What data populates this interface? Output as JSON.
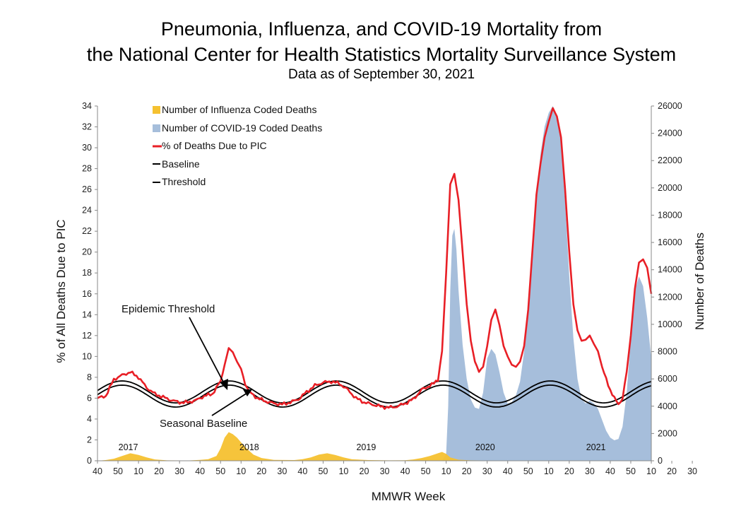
{
  "chart_data": {
    "type": "line",
    "title_line1": "Pneumonia, Influenza, and COVID-19 Mortality from",
    "title_line2": "the National Center for Health Statistics Mortality Surveillance System",
    "subtitle": "Data as of September 30, 2021",
    "xlabel": "MMWR Week",
    "ylabel_left": "% of All Deaths Due to PIC",
    "ylabel_right": "Number of Deaths",
    "ylim_left": [
      0,
      34
    ],
    "ylim_right": [
      0,
      26000
    ],
    "left_ticks": [
      "0",
      "2",
      "4",
      "6",
      "8",
      "10",
      "12",
      "14",
      "16",
      "18",
      "20",
      "22",
      "24",
      "26",
      "28",
      "30",
      "32",
      "34"
    ],
    "right_ticks": [
      "0",
      "2000",
      "4000",
      "6000",
      "8000",
      "10000",
      "12000",
      "14000",
      "16000",
      "18000",
      "20000",
      "22000",
      "24000",
      "26000"
    ],
    "x_tick_labels": [
      "40",
      "50",
      "10",
      "20",
      "30",
      "40",
      "50",
      "10",
      "20",
      "30",
      "40",
      "50",
      "10",
      "20",
      "30",
      "40",
      "50",
      "10",
      "20",
      "30",
      "40",
      "50",
      "10",
      "20",
      "30",
      "40",
      "50",
      "10",
      "20",
      "30"
    ],
    "year_labels": [
      {
        "label": "2017",
        "week_index": 15
      },
      {
        "label": "2018",
        "week_index": 74
      },
      {
        "label": "2019",
        "week_index": 131
      },
      {
        "label": "2020",
        "week_index": 189
      },
      {
        "label": "2021",
        "week_index": 243
      }
    ],
    "legend": [
      {
        "label": "Number of Influenza Coded Deaths",
        "color": "#f5c130",
        "kind": "area"
      },
      {
        "label": "Number of COVID-19 Coded Deaths",
        "color": "#a6bedb",
        "kind": "area"
      },
      {
        "label": "% of Deaths Due to PIC",
        "color": "#e81f26",
        "kind": "line"
      },
      {
        "label": "Baseline",
        "color": "#000000",
        "kind": "line"
      },
      {
        "label": "Threshold",
        "color": "#000000",
        "kind": "line"
      }
    ],
    "annotations": {
      "epidemic_threshold": "Epidemic Threshold",
      "seasonal_baseline": "Seasonal Baseline"
    },
    "series_pic_percent": {
      "name": "% of Deaths Due to PIC",
      "points": [
        [
          0,
          6.0
        ],
        [
          4,
          6.2
        ],
        [
          8,
          7.8
        ],
        [
          12,
          8.2
        ],
        [
          16,
          8.5
        ],
        [
          20,
          8.0
        ],
        [
          24,
          7.0
        ],
        [
          28,
          6.4
        ],
        [
          32,
          6.1
        ],
        [
          36,
          5.8
        ],
        [
          40,
          5.6
        ],
        [
          44,
          5.6
        ],
        [
          48,
          5.8
        ],
        [
          52,
          6.2
        ],
        [
          56,
          6.4
        ],
        [
          60,
          7.6
        ],
        [
          62,
          9.2
        ],
        [
          64,
          10.8
        ],
        [
          66,
          10.4
        ],
        [
          68,
          9.5
        ],
        [
          70,
          8.8
        ],
        [
          72,
          7.4
        ],
        [
          74,
          6.6
        ],
        [
          78,
          6.0
        ],
        [
          82,
          5.7
        ],
        [
          86,
          5.5
        ],
        [
          90,
          5.4
        ],
        [
          94,
          5.6
        ],
        [
          98,
          5.9
        ],
        [
          102,
          6.6
        ],
        [
          106,
          7.2
        ],
        [
          110,
          7.5
        ],
        [
          114,
          7.6
        ],
        [
          118,
          7.4
        ],
        [
          122,
          6.8
        ],
        [
          126,
          6.0
        ],
        [
          130,
          5.6
        ],
        [
          134,
          5.4
        ],
        [
          138,
          5.2
        ],
        [
          142,
          5.1
        ],
        [
          146,
          5.2
        ],
        [
          150,
          5.5
        ],
        [
          154,
          5.9
        ],
        [
          158,
          6.8
        ],
        [
          162,
          7.2
        ],
        [
          164,
          7.4
        ],
        [
          166,
          7.8
        ],
        [
          168,
          10.5
        ],
        [
          170,
          18.0
        ],
        [
          172,
          26.5
        ],
        [
          174,
          27.5
        ],
        [
          176,
          25.0
        ],
        [
          178,
          20.0
        ],
        [
          180,
          15.0
        ],
        [
          182,
          11.5
        ],
        [
          184,
          9.5
        ],
        [
          186,
          8.6
        ],
        [
          188,
          9.0
        ],
        [
          190,
          11.0
        ],
        [
          192,
          13.5
        ],
        [
          194,
          14.5
        ],
        [
          196,
          13.0
        ],
        [
          198,
          11.0
        ],
        [
          200,
          10.0
        ],
        [
          202,
          9.2
        ],
        [
          204,
          9.0
        ],
        [
          206,
          9.5
        ],
        [
          208,
          11.0
        ],
        [
          210,
          14.5
        ],
        [
          212,
          20.0
        ],
        [
          214,
          25.5
        ],
        [
          216,
          28.5
        ],
        [
          218,
          31.0
        ],
        [
          220,
          32.5
        ],
        [
          222,
          33.8
        ],
        [
          224,
          33.0
        ],
        [
          226,
          31.0
        ],
        [
          228,
          26.0
        ],
        [
          230,
          20.0
        ],
        [
          232,
          15.0
        ],
        [
          234,
          12.5
        ],
        [
          236,
          11.5
        ],
        [
          238,
          11.6
        ],
        [
          240,
          12.0
        ],
        [
          242,
          11.2
        ],
        [
          244,
          10.5
        ],
        [
          246,
          9.0
        ],
        [
          248,
          7.8
        ],
        [
          250,
          6.8
        ],
        [
          252,
          6.0
        ],
        [
          254,
          5.4
        ],
        [
          256,
          6.0
        ],
        [
          258,
          8.5
        ],
        [
          260,
          12.0
        ],
        [
          262,
          16.5
        ],
        [
          264,
          19.0
        ],
        [
          266,
          19.3
        ],
        [
          268,
          18.5
        ],
        [
          270,
          16.0
        ]
      ]
    },
    "series_influenza_deaths": {
      "name": "Number of Influenza Coded Deaths",
      "points": [
        [
          0,
          0
        ],
        [
          4,
          50
        ],
        [
          8,
          150
        ],
        [
          12,
          350
        ],
        [
          16,
          550
        ],
        [
          20,
          430
        ],
        [
          24,
          250
        ],
        [
          28,
          100
        ],
        [
          34,
          30
        ],
        [
          44,
          20
        ],
        [
          50,
          60
        ],
        [
          54,
          120
        ],
        [
          58,
          350
        ],
        [
          60,
          900
        ],
        [
          62,
          1700
        ],
        [
          64,
          2100
        ],
        [
          66,
          1950
        ],
        [
          68,
          1700
        ],
        [
          72,
          1000
        ],
        [
          76,
          450
        ],
        [
          80,
          200
        ],
        [
          86,
          60
        ],
        [
          96,
          50
        ],
        [
          100,
          120
        ],
        [
          104,
          250
        ],
        [
          108,
          450
        ],
        [
          112,
          550
        ],
        [
          116,
          420
        ],
        [
          120,
          250
        ],
        [
          124,
          110
        ],
        [
          132,
          50
        ],
        [
          142,
          30
        ],
        [
          150,
          40
        ],
        [
          154,
          100
        ],
        [
          158,
          200
        ],
        [
          162,
          350
        ],
        [
          166,
          550
        ],
        [
          168,
          650
        ],
        [
          170,
          500
        ],
        [
          172,
          250
        ],
        [
          176,
          80
        ],
        [
          182,
          30
        ],
        [
          200,
          15
        ],
        [
          270,
          15
        ]
      ]
    },
    "series_covid_deaths": {
      "name": "Number of COVID-19 Coded Deaths",
      "points": [
        [
          168,
          0
        ],
        [
          170,
          500
        ],
        [
          171,
          4000
        ],
        [
          172,
          12500
        ],
        [
          173,
          16500
        ],
        [
          174,
          17000
        ],
        [
          175,
          15500
        ],
        [
          176,
          12500
        ],
        [
          178,
          8500
        ],
        [
          180,
          6000
        ],
        [
          182,
          4500
        ],
        [
          184,
          3900
        ],
        [
          186,
          3800
        ],
        [
          188,
          5000
        ],
        [
          190,
          7500
        ],
        [
          192,
          8200
        ],
        [
          194,
          7800
        ],
        [
          196,
          6500
        ],
        [
          198,
          5000
        ],
        [
          200,
          4200
        ],
        [
          202,
          4300
        ],
        [
          204,
          4800
        ],
        [
          206,
          5800
        ],
        [
          208,
          8000
        ],
        [
          210,
          11000
        ],
        [
          212,
          15000
        ],
        [
          214,
          19000
        ],
        [
          216,
          22500
        ],
        [
          218,
          24500
        ],
        [
          220,
          25500
        ],
        [
          222,
          26000
        ],
        [
          224,
          25300
        ],
        [
          226,
          23500
        ],
        [
          228,
          19000
        ],
        [
          230,
          13500
        ],
        [
          232,
          9000
        ],
        [
          234,
          6000
        ],
        [
          236,
          4500
        ],
        [
          238,
          4200
        ],
        [
          240,
          4400
        ],
        [
          242,
          4200
        ],
        [
          244,
          3800
        ],
        [
          246,
          3000
        ],
        [
          248,
          2200
        ],
        [
          250,
          1700
        ],
        [
          252,
          1500
        ],
        [
          254,
          1600
        ],
        [
          256,
          2500
        ],
        [
          258,
          5000
        ],
        [
          260,
          9000
        ],
        [
          262,
          12500
        ],
        [
          264,
          13500
        ],
        [
          266,
          12800
        ],
        [
          268,
          10500
        ],
        [
          270,
          7500
        ]
      ]
    },
    "baseline_sinusoid": {
      "name": "Baseline",
      "mean_percent": 6.2,
      "amplitude_percent": 1.05,
      "period_weeks": 52.18,
      "peak_week_index": 12,
      "offset_from_threshold_percent": 0.4
    }
  }
}
